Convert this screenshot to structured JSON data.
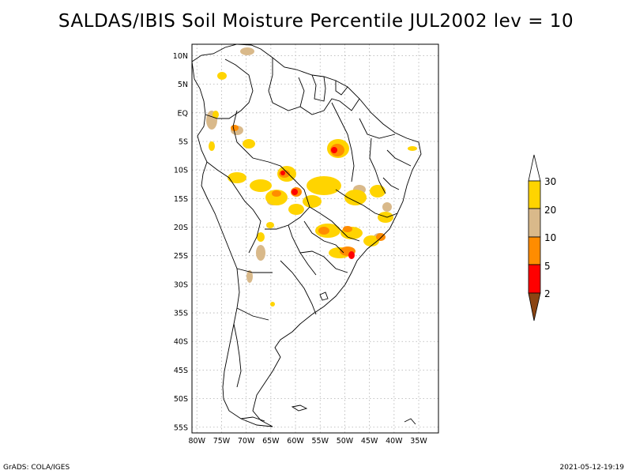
{
  "title": "SALDAS/IBIS Soil Moisture Percentile JUL2002 lev = 10",
  "footer": {
    "left": "GrADS: COLA/IGES",
    "right": "2021-05-12-19:19"
  },
  "map": {
    "lon_range": [
      -81,
      -31
    ],
    "lat_range": [
      -56,
      12
    ],
    "y_ticks": [
      "10N",
      "5N",
      "EQ",
      "5S",
      "10S",
      "15S",
      "20S",
      "25S",
      "30S",
      "35S",
      "40S",
      "45S",
      "50S",
      "55S"
    ],
    "y_tick_values": [
      10,
      5,
      0,
      -5,
      -10,
      -15,
      -20,
      -25,
      -30,
      -35,
      -40,
      -45,
      -50,
      -55
    ],
    "x_ticks": [
      "80W",
      "75W",
      "70W",
      "65W",
      "60W",
      "55W",
      "50W",
      "45W",
      "40W",
      "35W"
    ],
    "x_tick_values": [
      -80,
      -75,
      -70,
      -65,
      -60,
      -55,
      -50,
      -45,
      -40,
      -35
    ]
  },
  "colorbar": {
    "labels": [
      "30",
      "20",
      "10",
      "5",
      "2"
    ],
    "colors": {
      "above_30": "#ffffff",
      "20_30": "#ffd400",
      "10_20": "#d9b98a",
      "5_10": "#ff8c00",
      "2_5": "#ff0000",
      "below_2": "#8b4513"
    }
  },
  "colors": {
    "frame": "#000000",
    "grid": "#b0b0b0",
    "coast": "#000000"
  }
}
